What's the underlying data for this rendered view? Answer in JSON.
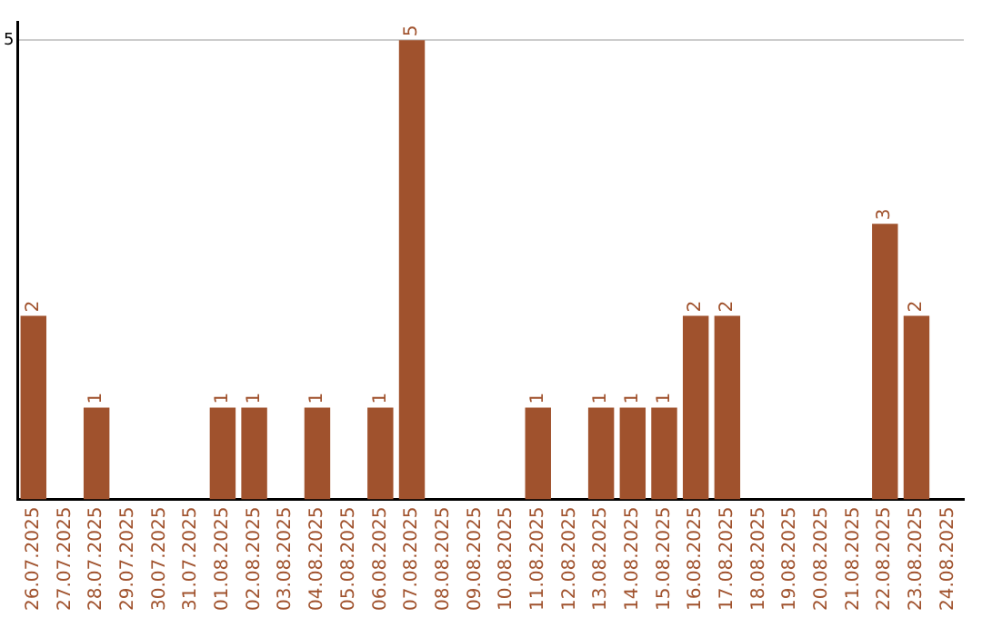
{
  "chart_data": {
    "type": "bar",
    "categories": [
      "26.07.2025",
      "27.07.2025",
      "28.07.2025",
      "29.07.2025",
      "30.07.2025",
      "31.07.2025",
      "01.08.2025",
      "02.08.2025",
      "03.08.2025",
      "04.08.2025",
      "05.08.2025",
      "06.08.2025",
      "07.08.2025",
      "08.08.2025",
      "09.08.2025",
      "10.08.2025",
      "11.08.2025",
      "12.08.2025",
      "13.08.2025",
      "14.08.2025",
      "15.08.2025",
      "16.08.2025",
      "17.08.2025",
      "18.08.2025",
      "19.08.2025",
      "20.08.2025",
      "21.08.2025",
      "22.08.2025",
      "23.08.2025",
      "24.08.2025"
    ],
    "values": [
      2,
      0,
      1,
      0,
      0,
      0,
      1,
      1,
      0,
      1,
      0,
      1,
      5,
      0,
      0,
      0,
      1,
      0,
      1,
      1,
      1,
      2,
      2,
      0,
      0,
      0,
      0,
      3,
      2,
      0
    ],
    "value_labels": [
      "2",
      null,
      "1",
      null,
      null,
      null,
      "1",
      "1",
      null,
      "1",
      null,
      "1",
      "5",
      null,
      null,
      null,
      "1",
      null,
      "1",
      "1",
      "1",
      "2",
      "2",
      null,
      null,
      null,
      null,
      "3",
      "2",
      null
    ],
    "color": "#a0522d",
    "ylim": [
      0,
      5.2
    ],
    "yticks": [
      5
    ],
    "grid": "y"
  }
}
